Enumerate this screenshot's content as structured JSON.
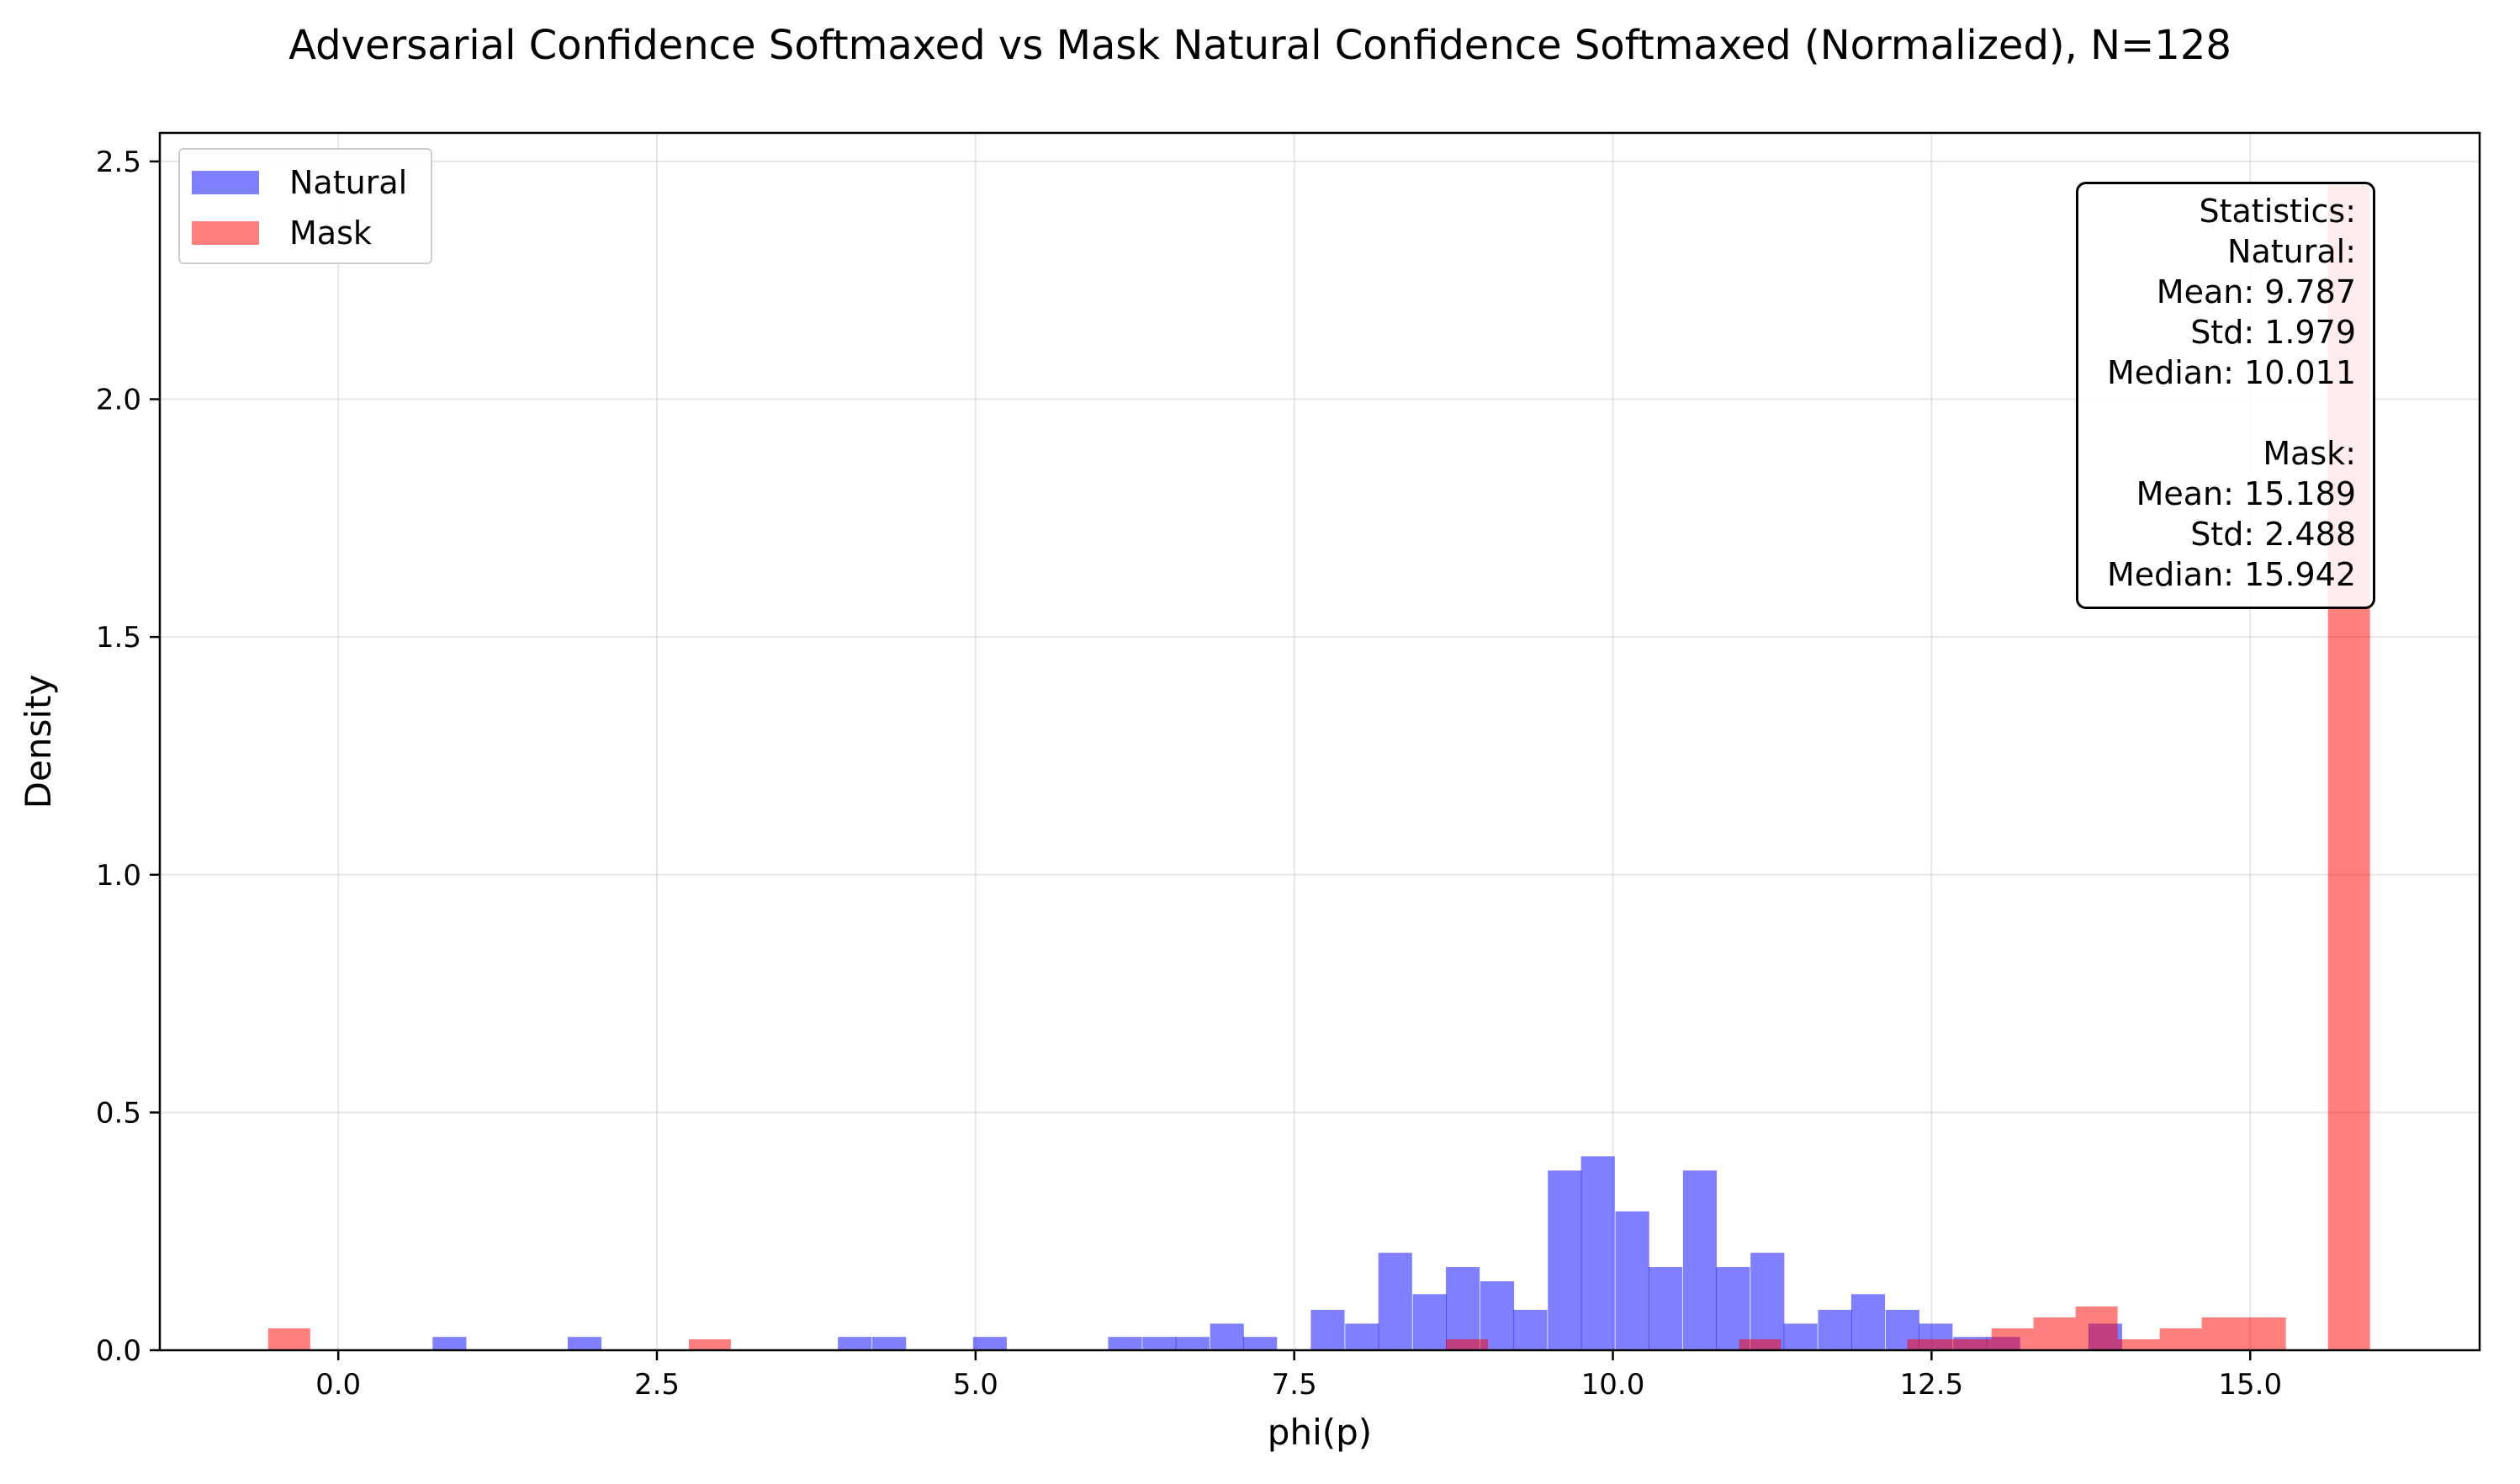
{
  "chart_data": {
    "type": "histogram",
    "title": "Adversarial Confidence Softmaxed vs Mask Natural Confidence Softmaxed (Normalized), N=128",
    "xlabel": "phi(p)",
    "ylabel": "Density",
    "xlim": [
      -1.4,
      16.8
    ],
    "ylim": [
      0,
      2.56
    ],
    "xticks": [
      0.0,
      2.5,
      5.0,
      7.5,
      10.0,
      12.5,
      15.0
    ],
    "xtick_labels": [
      "0.0",
      "2.5",
      "5.0",
      "7.5",
      "10.0",
      "12.5",
      "15.0"
    ],
    "yticks": [
      0.0,
      0.5,
      1.0,
      1.5,
      2.0,
      2.5
    ],
    "ytick_labels": [
      "0.0",
      "0.5",
      "1.0",
      "1.5",
      "2.0",
      "2.5"
    ],
    "grid": true,
    "legend_position": "upper-left",
    "series": [
      {
        "name": "Natural",
        "color": "#0000ff",
        "alpha": 0.5,
        "bin_width": 0.265,
        "bins": [
          {
            "x0": 0.74,
            "y": 0.028
          },
          {
            "x0": 1.8,
            "y": 0.028
          },
          {
            "x0": 3.92,
            "y": 0.028
          },
          {
            "x0": 4.19,
            "y": 0.028
          },
          {
            "x0": 4.98,
            "y": 0.028
          },
          {
            "x0": 6.04,
            "y": 0.028
          },
          {
            "x0": 6.31,
            "y": 0.028
          },
          {
            "x0": 6.57,
            "y": 0.028
          },
          {
            "x0": 6.84,
            "y": 0.056
          },
          {
            "x0": 7.1,
            "y": 0.028
          },
          {
            "x0": 7.63,
            "y": 0.085
          },
          {
            "x0": 7.9,
            "y": 0.056
          },
          {
            "x0": 8.16,
            "y": 0.205
          },
          {
            "x0": 8.43,
            "y": 0.118
          },
          {
            "x0": 8.69,
            "y": 0.175
          },
          {
            "x0": 8.96,
            "y": 0.145
          },
          {
            "x0": 9.22,
            "y": 0.085
          },
          {
            "x0": 9.49,
            "y": 0.378
          },
          {
            "x0": 9.75,
            "y": 0.408
          },
          {
            "x0": 10.02,
            "y": 0.292
          },
          {
            "x0": 10.28,
            "y": 0.175
          },
          {
            "x0": 10.55,
            "y": 0.378
          },
          {
            "x0": 10.81,
            "y": 0.175
          },
          {
            "x0": 11.08,
            "y": 0.205
          },
          {
            "x0": 11.34,
            "y": 0.056
          },
          {
            "x0": 11.61,
            "y": 0.085
          },
          {
            "x0": 11.87,
            "y": 0.118
          },
          {
            "x0": 12.14,
            "y": 0.085
          },
          {
            "x0": 12.4,
            "y": 0.056
          },
          {
            "x0": 12.67,
            "y": 0.028
          },
          {
            "x0": 12.93,
            "y": 0.028
          },
          {
            "x0": 13.73,
            "y": 0.056
          }
        ]
      },
      {
        "name": "Mask",
        "color": "#ff0000",
        "alpha": 0.5,
        "bin_width": 0.33,
        "bins": [
          {
            "x0": -0.55,
            "y": 0.046
          },
          {
            "x0": 2.75,
            "y": 0.023
          },
          {
            "x0": 8.69,
            "y": 0.023
          },
          {
            "x0": 10.99,
            "y": 0.023
          },
          {
            "x0": 12.31,
            "y": 0.023
          },
          {
            "x0": 12.64,
            "y": 0.023
          },
          {
            "x0": 12.97,
            "y": 0.046
          },
          {
            "x0": 13.3,
            "y": 0.069
          },
          {
            "x0": 13.63,
            "y": 0.092
          },
          {
            "x0": 13.96,
            "y": 0.023
          },
          {
            "x0": 14.29,
            "y": 0.046
          },
          {
            "x0": 14.62,
            "y": 0.069
          },
          {
            "x0": 14.95,
            "y": 0.069
          },
          {
            "x0": 15.61,
            "y": 2.45
          }
        ]
      }
    ],
    "stats_box": {
      "lines": [
        "Statistics:",
        "Natural:",
        "Mean: 9.787",
        "Std: 1.979",
        "Median: 10.011",
        "",
        "Mask:",
        "Mean: 15.189",
        "Std: 2.488",
        "Median: 15.942"
      ]
    }
  }
}
